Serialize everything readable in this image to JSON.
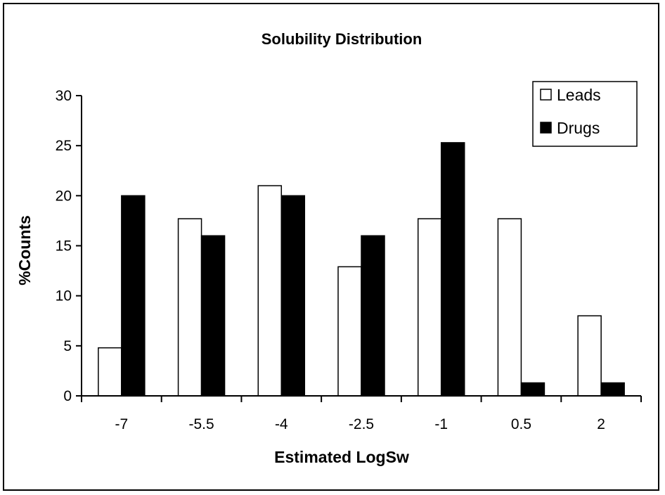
{
  "chart_data": {
    "type": "bar",
    "title": "Solubility Distribution",
    "xlabel": "Estimated LogSw",
    "ylabel": "%Counts",
    "categories": [
      "-7",
      "-5.5",
      "-4",
      "-2.5",
      "-1",
      "0.5",
      "2"
    ],
    "series": [
      {
        "name": "Leads",
        "values": [
          4.8,
          17.7,
          21.0,
          12.9,
          17.7,
          17.7,
          8.0
        ],
        "fill": "#ffffff",
        "stroke": "#000000"
      },
      {
        "name": "Drugs",
        "values": [
          20.0,
          16.0,
          20.0,
          16.0,
          25.3,
          1.3,
          1.3
        ],
        "fill": "#000000",
        "stroke": "#000000"
      }
    ],
    "ylim": [
      0,
      30
    ],
    "yticks": [
      "0",
      "5",
      "10",
      "15",
      "20",
      "25",
      "30"
    ],
    "grid": false,
    "legend_position": "top-right"
  }
}
